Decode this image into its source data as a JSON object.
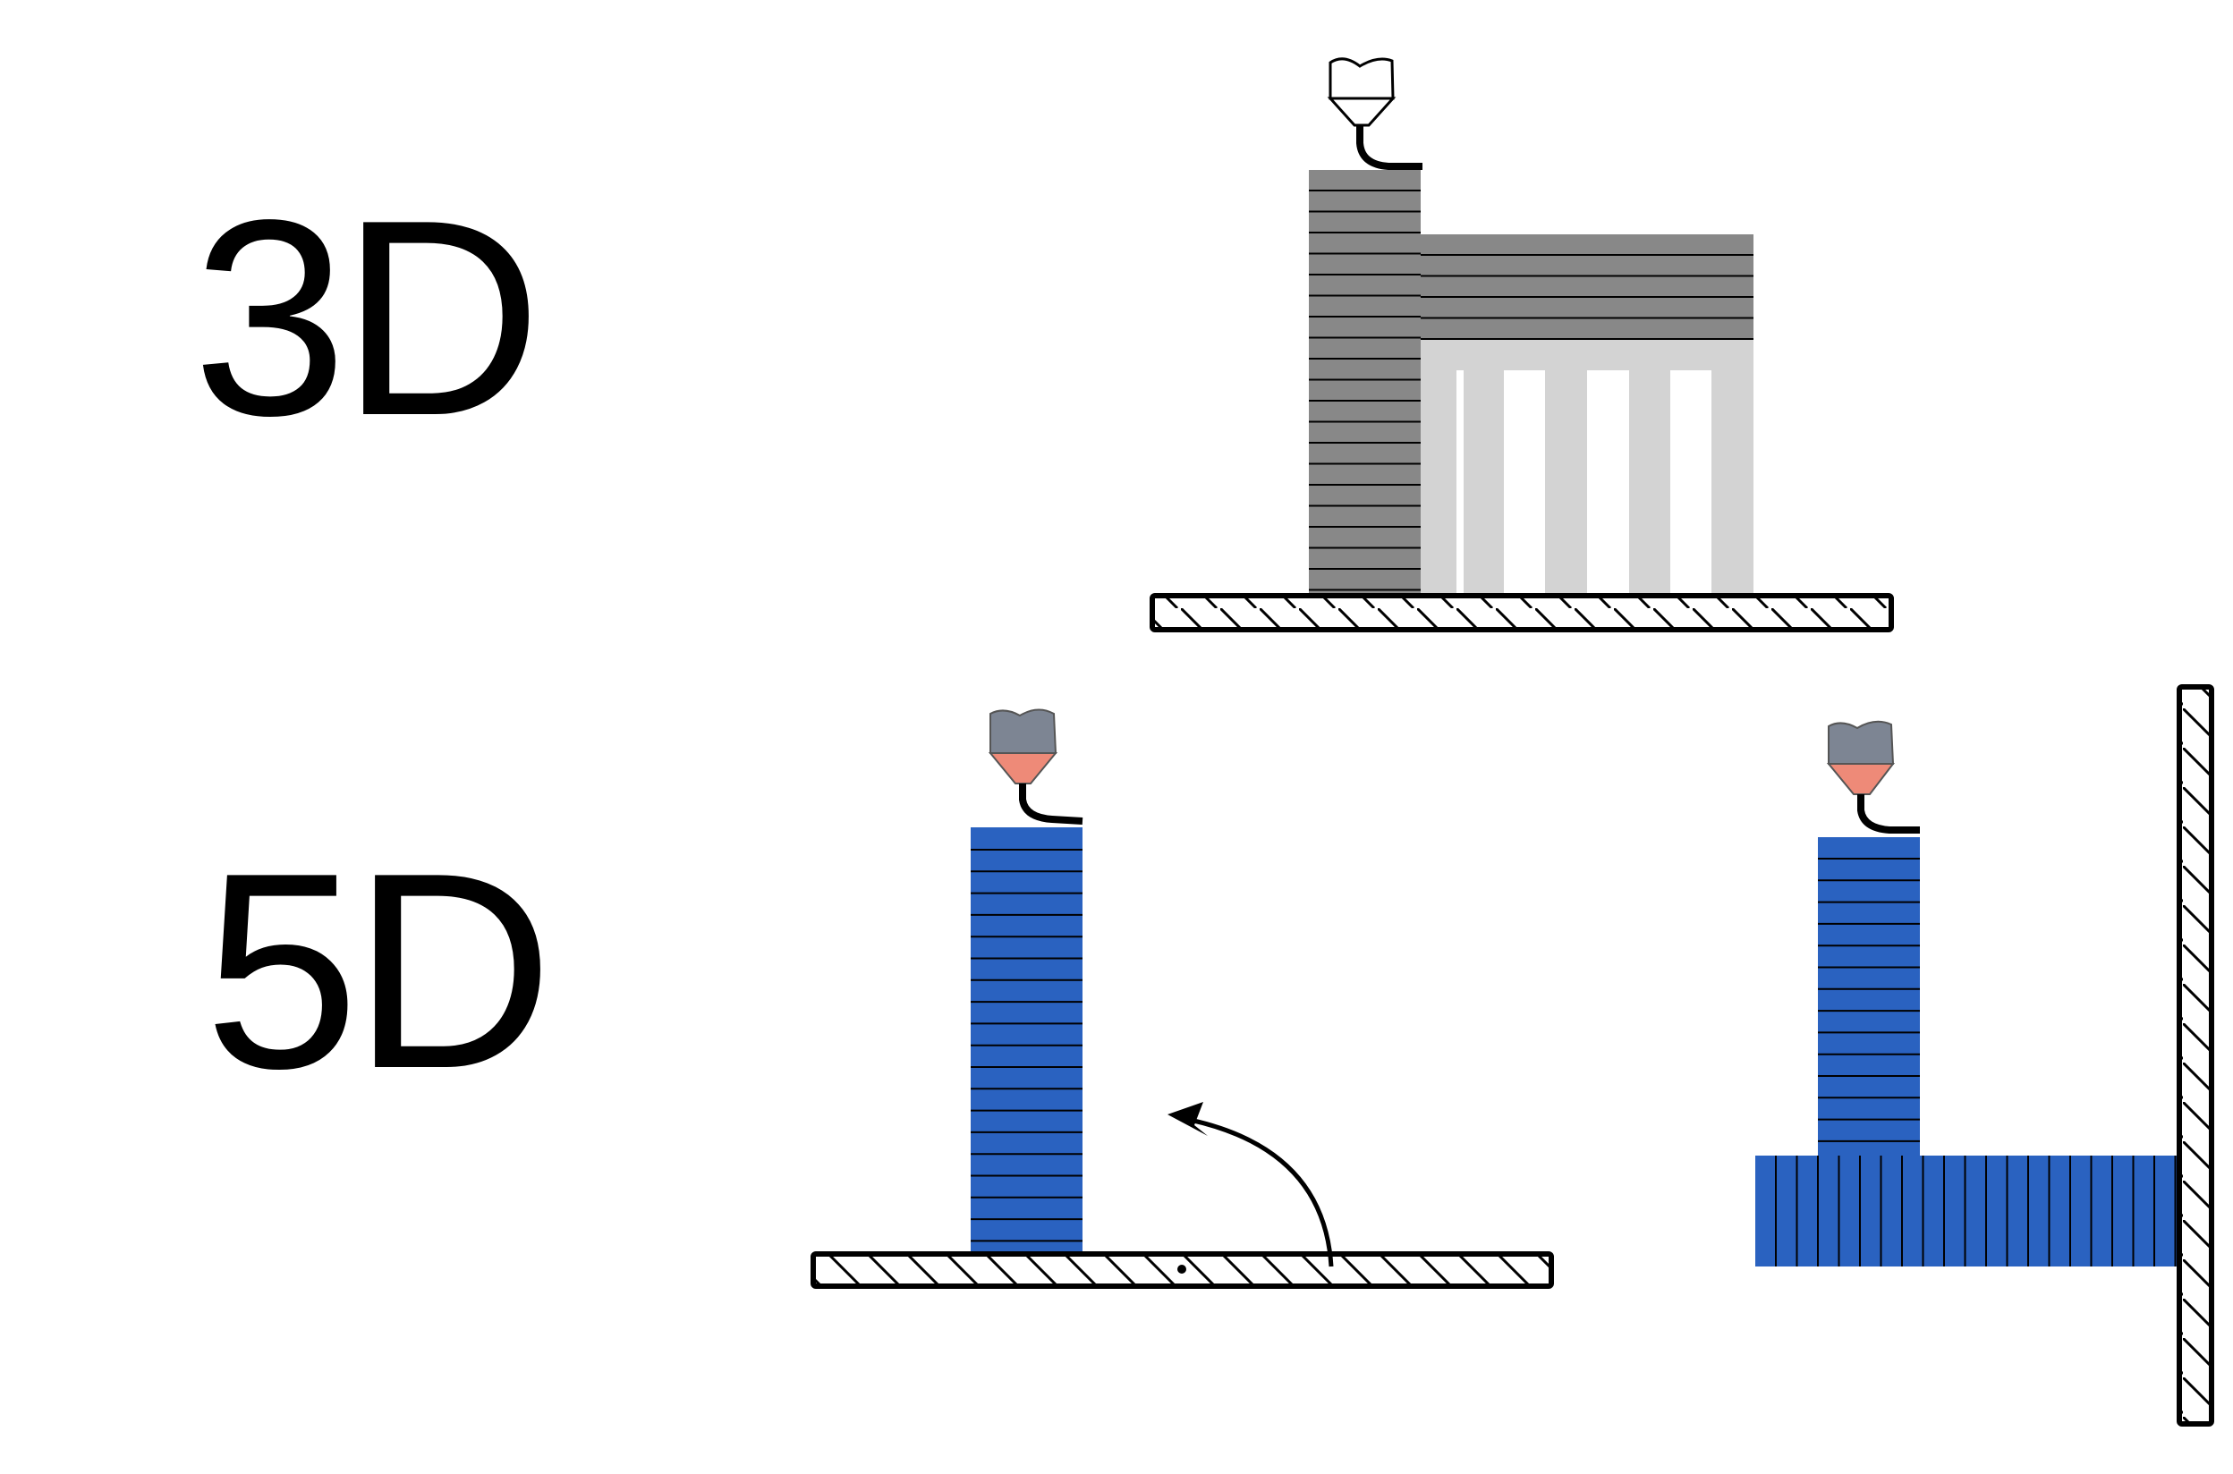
{
  "labels": {
    "top": "3D",
    "bottom": "5D"
  },
  "colors": {
    "printed_3d": "#888888",
    "support": "#d3d3d3",
    "printed_5d": "#2a62c0",
    "nozzle_cap": "#7d8593",
    "nozzle_tip": "#ee8a78",
    "outline": "#000000"
  },
  "icons": [
    "print-head-icon",
    "build-plate-icon",
    "rotation-arrow-icon"
  ]
}
